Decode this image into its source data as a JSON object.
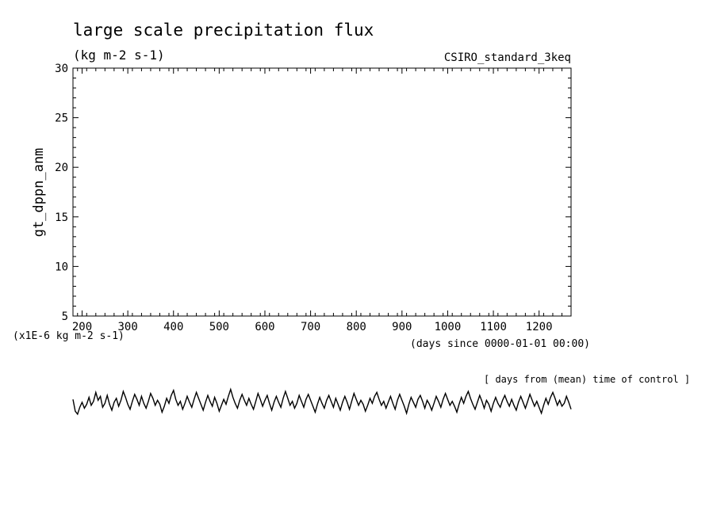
{
  "chart_data": {
    "type": "line",
    "title": "large scale precipitation flux",
    "subtitle": "(kg m-2 s-1)",
    "experiment": "CSIRO_standard_3keq",
    "ylabel": "gt_dppn_anm",
    "yunits": "(x1E-6 kg m-2 s-1)",
    "xlabel": "(days since 0000-01-01 00:00)",
    "note": "[ days from (mean) time of control ]",
    "xlim": [
      180,
      1270
    ],
    "ylim": [
      5,
      30
    ],
    "xticks": [
      200,
      300,
      400,
      500,
      600,
      700,
      800,
      900,
      1000,
      1100,
      1200
    ],
    "yticks": [
      5,
      10,
      15,
      20,
      25,
      30
    ],
    "grid": false,
    "series": [
      {
        "values": [
          -3.4,
          -4.6,
          -4.9,
          -4.2,
          -3.7,
          -4.3,
          -3.9,
          -3.2,
          -4.0,
          -3.6,
          -2.7,
          -3.5,
          -3.1,
          -4.2,
          -3.8,
          -3.0,
          -3.9,
          -4.5,
          -3.7,
          -3.3,
          -4.1,
          -3.5,
          -2.6,
          -3.2,
          -3.9,
          -4.4,
          -3.6,
          -2.9,
          -3.4,
          -4.0,
          -3.1,
          -3.8,
          -4.3,
          -3.6,
          -2.8,
          -3.3,
          -4.0,
          -3.5,
          -3.9,
          -4.7,
          -4.1,
          -3.3,
          -3.8,
          -3.0,
          -2.5,
          -3.4,
          -4.0,
          -3.6,
          -4.4,
          -3.8,
          -3.1,
          -3.7,
          -4.2,
          -3.4,
          -2.7,
          -3.3,
          -3.9,
          -4.5,
          -3.7,
          -3.0,
          -3.6,
          -4.1,
          -3.2,
          -3.8,
          -4.6,
          -4.0,
          -3.4,
          -3.9,
          -3.1,
          -2.4,
          -3.2,
          -3.8,
          -4.3,
          -3.5,
          -2.9,
          -3.5,
          -4.0,
          -3.3,
          -3.9,
          -4.4,
          -3.6,
          -2.8,
          -3.4,
          -4.1,
          -3.5,
          -3.0,
          -3.8,
          -4.5,
          -3.7,
          -3.1,
          -3.7,
          -4.2,
          -3.3,
          -2.6,
          -3.3,
          -4.0,
          -3.6,
          -4.3,
          -3.8,
          -3.0,
          -3.6,
          -4.2,
          -3.4,
          -2.9,
          -3.5,
          -4.1,
          -4.7,
          -3.9,
          -3.2,
          -3.8,
          -4.3,
          -3.5,
          -3.0,
          -3.6,
          -4.2,
          -3.3,
          -3.9,
          -4.5,
          -3.7,
          -3.1,
          -3.7,
          -4.4,
          -3.6,
          -2.8,
          -3.4,
          -4.0,
          -3.5,
          -3.9,
          -4.6,
          -4.0,
          -3.3,
          -3.8,
          -3.1,
          -2.7,
          -3.4,
          -4.0,
          -3.6,
          -4.3,
          -3.7,
          -3.1,
          -3.8,
          -4.4,
          -3.5,
          -2.9,
          -3.5,
          -4.1,
          -4.8,
          -3.9,
          -3.2,
          -3.7,
          -4.2,
          -3.4,
          -3.0,
          -3.6,
          -4.3,
          -3.5,
          -3.9,
          -4.5,
          -3.8,
          -3.1,
          -3.6,
          -4.2,
          -3.4,
          -2.8,
          -3.4,
          -4.0,
          -3.6,
          -4.1,
          -4.7,
          -3.9,
          -3.2,
          -3.8,
          -3.1,
          -2.6,
          -3.3,
          -3.9,
          -4.4,
          -3.7,
          -3.0,
          -3.6,
          -4.3,
          -3.5,
          -3.9,
          -4.6,
          -3.8,
          -3.2,
          -3.8,
          -4.2,
          -3.5,
          -3.0,
          -3.6,
          -4.1,
          -3.4,
          -4.0,
          -4.5,
          -3.7,
          -3.1,
          -3.7,
          -4.3,
          -3.6,
          -2.9,
          -3.5,
          -4.1,
          -3.6,
          -4.2,
          -4.8,
          -4.0,
          -3.3,
          -3.9,
          -3.2,
          -2.7,
          -3.3,
          -4.0,
          -3.5,
          -4.1,
          -3.8,
          -3.1,
          -3.7,
          -4.4
        ]
      }
    ]
  }
}
